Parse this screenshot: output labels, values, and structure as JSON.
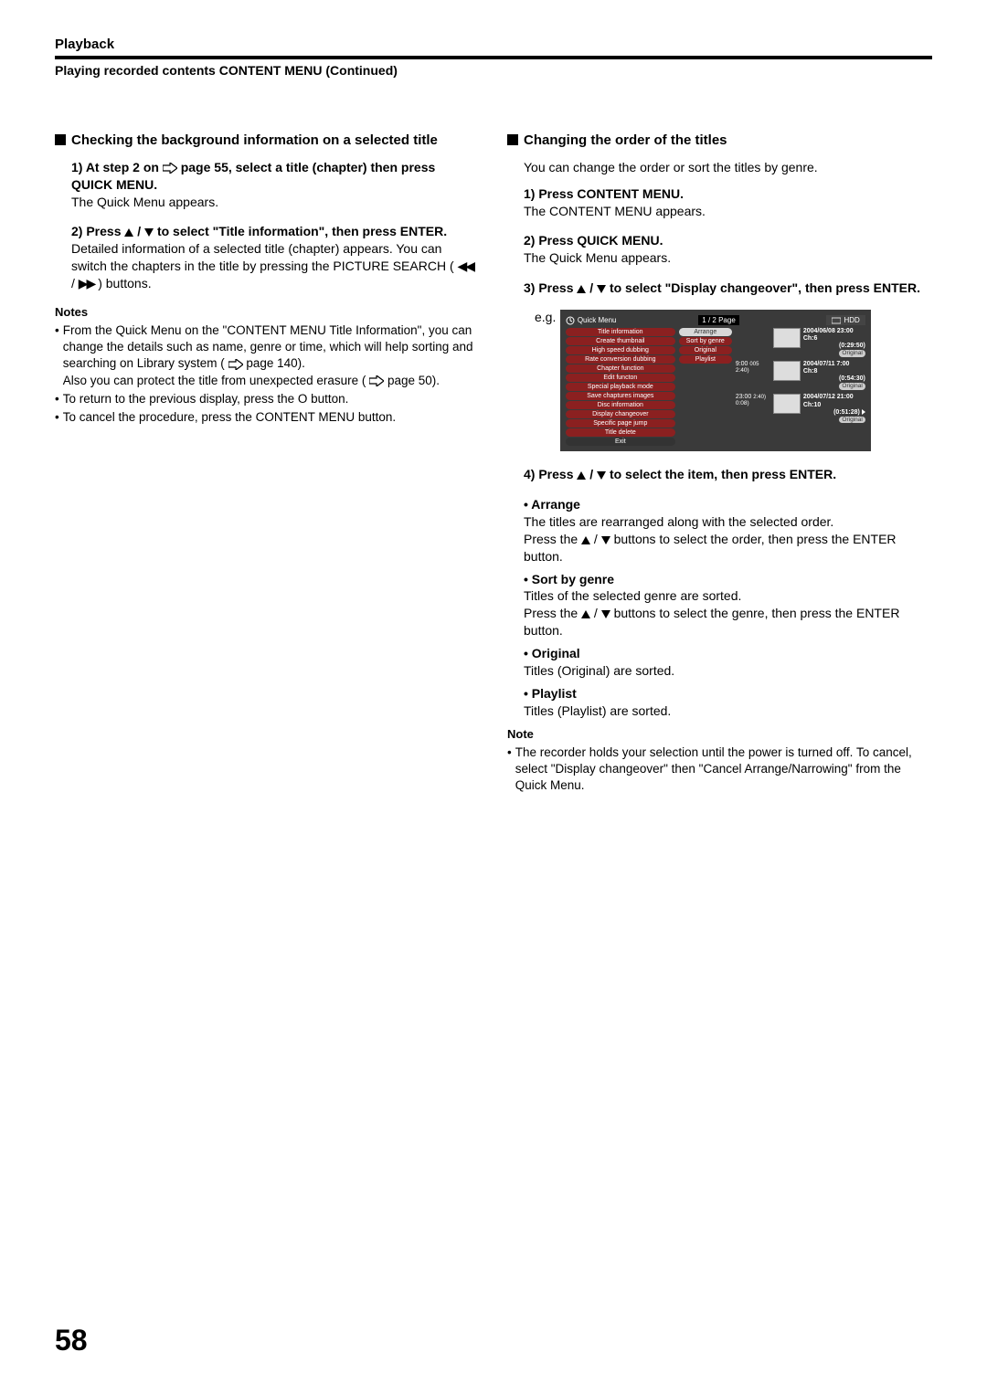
{
  "header": {
    "title": "Playback",
    "subtitle": "Playing recorded contents CONTENT MENU (Continued)"
  },
  "left": {
    "heading": "Checking the background information on a selected title",
    "step1": {
      "prefix": "1) At step 2 on ",
      "mid": " page 55, select a title (chapter) then press QUICK MENU.",
      "body": "The Quick Menu appears."
    },
    "step2": {
      "title_a": "2) Press ",
      "title_b": " to select \"Title information\", then press ENTER.",
      "body_a": "Detailed information of a selected title (chapter) appears. You can switch the chapters in the title by pressing the PICTURE SEARCH (",
      "body_b": ") buttons."
    },
    "notes_heading": "Notes",
    "note1_a": "From the Quick Menu on the \"CONTENT MENU Title Information\", you can change the details such as name, genre or time, which will help sorting and searching on Library system ( ",
    "note1_b": " page 140).",
    "note1_c": "Also you can protect the title from unexpected erasure ( ",
    "note1_d": " page 50).",
    "note2": "To return to the previous display, press the O button.",
    "note3": "To cancel the procedure, press the CONTENT MENU button."
  },
  "right": {
    "heading": "Changing the order of the titles",
    "intro": "You can change the order or sort the titles by genre.",
    "step1": {
      "title": "1) Press CONTENT MENU.",
      "body": "The CONTENT MENU appears."
    },
    "step2": {
      "title": "2) Press QUICK MENU.",
      "body": "The Quick Menu appears."
    },
    "step3": {
      "title_a": "3) Press ",
      "title_b": " to select \"Display changeover\", then press ENTER."
    },
    "eg": "e.g.",
    "step4": {
      "title_a": "4) Press ",
      "title_b": " to select the item, then press ENTER."
    },
    "arrange": {
      "title": "• Arrange",
      "body_a": "The titles are rearranged along with the selected order.",
      "body_b_a": "Press the ",
      "body_b_b": " buttons to select the order, then press the ENTER button."
    },
    "sort": {
      "title": "• Sort by genre",
      "body_a": "Titles of the selected genre are sorted.",
      "body_b_a": "Press the ",
      "body_b_b": " buttons to select the genre, then press the ENTER button."
    },
    "original": {
      "title": "• Original",
      "body": "Titles (Original) are sorted."
    },
    "playlist": {
      "title": "• Playlist",
      "body": "Titles (Playlist) are sorted."
    },
    "note_heading": "Note",
    "note1": "The recorder holds your selection until the power is turned off. To cancel, select \"Display changeover\" then \"Cancel Arrange/Narrowing\" from the Quick Menu."
  },
  "osd": {
    "quick_menu_label": "Quick Menu",
    "page_label": "1 / 2  Page",
    "hdd_label": "HDD",
    "menu_items": [
      "Title information",
      "Create thumbnail",
      "High speed dubbing",
      "Rate conversion dubbing",
      "Chapter function",
      "Edit functon",
      "Special playback mode",
      "Save chaptures images",
      "Disc information",
      "Display changeover",
      "Specific page jump",
      "Title delete",
      "Exit"
    ],
    "submenu": {
      "items": [
        "Arrange",
        "Sort by genre",
        "Original",
        "Playlist"
      ],
      "colors": [
        "#d8d8d8",
        "#8b2020",
        "#8b2020",
        "#8b2020"
      ],
      "text_colors": [
        "#333333",
        "#ffffff",
        "#ffffff",
        "#ffffff"
      ]
    },
    "tiles": [
      {
        "tl_time": "",
        "tl_idx": "",
        "date": "2004/06/08 23:00",
        "ch": "Ch:6",
        "dur": "(0:29:50)",
        "badge": "Original"
      },
      {
        "tl_time": "9:00",
        "tl_idx": "005",
        "date": "2004/07/11  7:00",
        "ch": "Ch:8",
        "dur": "(0:54:30)",
        "badge": "Original"
      },
      {
        "tl_time": "23:00",
        "tl_idx": "2:40)",
        "date": "2004/07/12 21:00",
        "ch": "Ch:10",
        "dur": "(0:51:28)",
        "badge": "Original"
      }
    ],
    "extra_times": [
      "0:08)"
    ],
    "colors": {
      "bg": "#3a3a3a",
      "menu_bg": "#8b2020",
      "menu_fg": "#ffffff",
      "page_bg": "#000000"
    }
  },
  "page_number": "58"
}
